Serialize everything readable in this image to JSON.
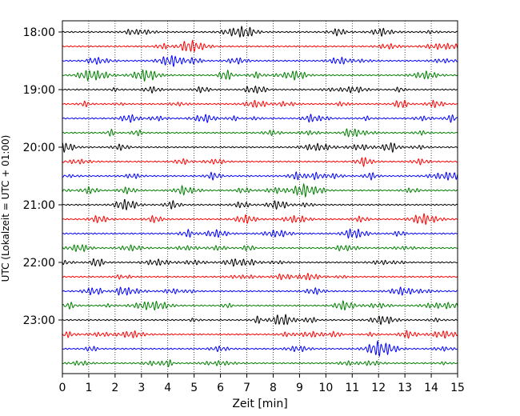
{
  "chart_data": {
    "type": "line",
    "title": "",
    "xlabel": "Zeit  [min]",
    "ylabel": "UTC (Lokalzeit = UTC + 01:00)",
    "xlim": [
      0,
      15
    ],
    "x_ticks": [
      "0",
      "1",
      "2",
      "3",
      "4",
      "5",
      "6",
      "7",
      "8",
      "9",
      "10",
      "11",
      "12",
      "13",
      "14",
      "15"
    ],
    "y_ticks": [
      "18:00",
      "19:00",
      "20:00",
      "21:00",
      "22:00",
      "23:00"
    ],
    "grid": "vertical dotted",
    "trace_interval_min": 15,
    "trace_start": "18:00",
    "trace_count": 24,
    "trace_colors": [
      "#000000",
      "#ff0000",
      "#0000ff",
      "#007f00"
    ],
    "traces": [
      {
        "start": "18:00",
        "color": "#000000"
      },
      {
        "start": "18:15",
        "color": "#ff0000"
      },
      {
        "start": "18:30",
        "color": "#0000ff"
      },
      {
        "start": "18:45",
        "color": "#007f00"
      },
      {
        "start": "19:00",
        "color": "#000000"
      },
      {
        "start": "19:15",
        "color": "#ff0000"
      },
      {
        "start": "19:30",
        "color": "#0000ff"
      },
      {
        "start": "19:45",
        "color": "#007f00"
      },
      {
        "start": "20:00",
        "color": "#000000"
      },
      {
        "start": "20:15",
        "color": "#ff0000"
      },
      {
        "start": "20:30",
        "color": "#0000ff"
      },
      {
        "start": "20:45",
        "color": "#007f00"
      },
      {
        "start": "21:00",
        "color": "#000000"
      },
      {
        "start": "21:15",
        "color": "#ff0000"
      },
      {
        "start": "21:30",
        "color": "#0000ff"
      },
      {
        "start": "21:45",
        "color": "#007f00"
      },
      {
        "start": "22:00",
        "color": "#000000"
      },
      {
        "start": "22:15",
        "color": "#ff0000"
      },
      {
        "start": "22:30",
        "color": "#0000ff"
      },
      {
        "start": "22:45",
        "color": "#007f00"
      },
      {
        "start": "23:00",
        "color": "#000000"
      },
      {
        "start": "23:15",
        "color": "#ff0000"
      },
      {
        "start": "23:30",
        "color": "#0000ff"
      },
      {
        "start": "23:45",
        "color": "#007f00"
      }
    ]
  }
}
